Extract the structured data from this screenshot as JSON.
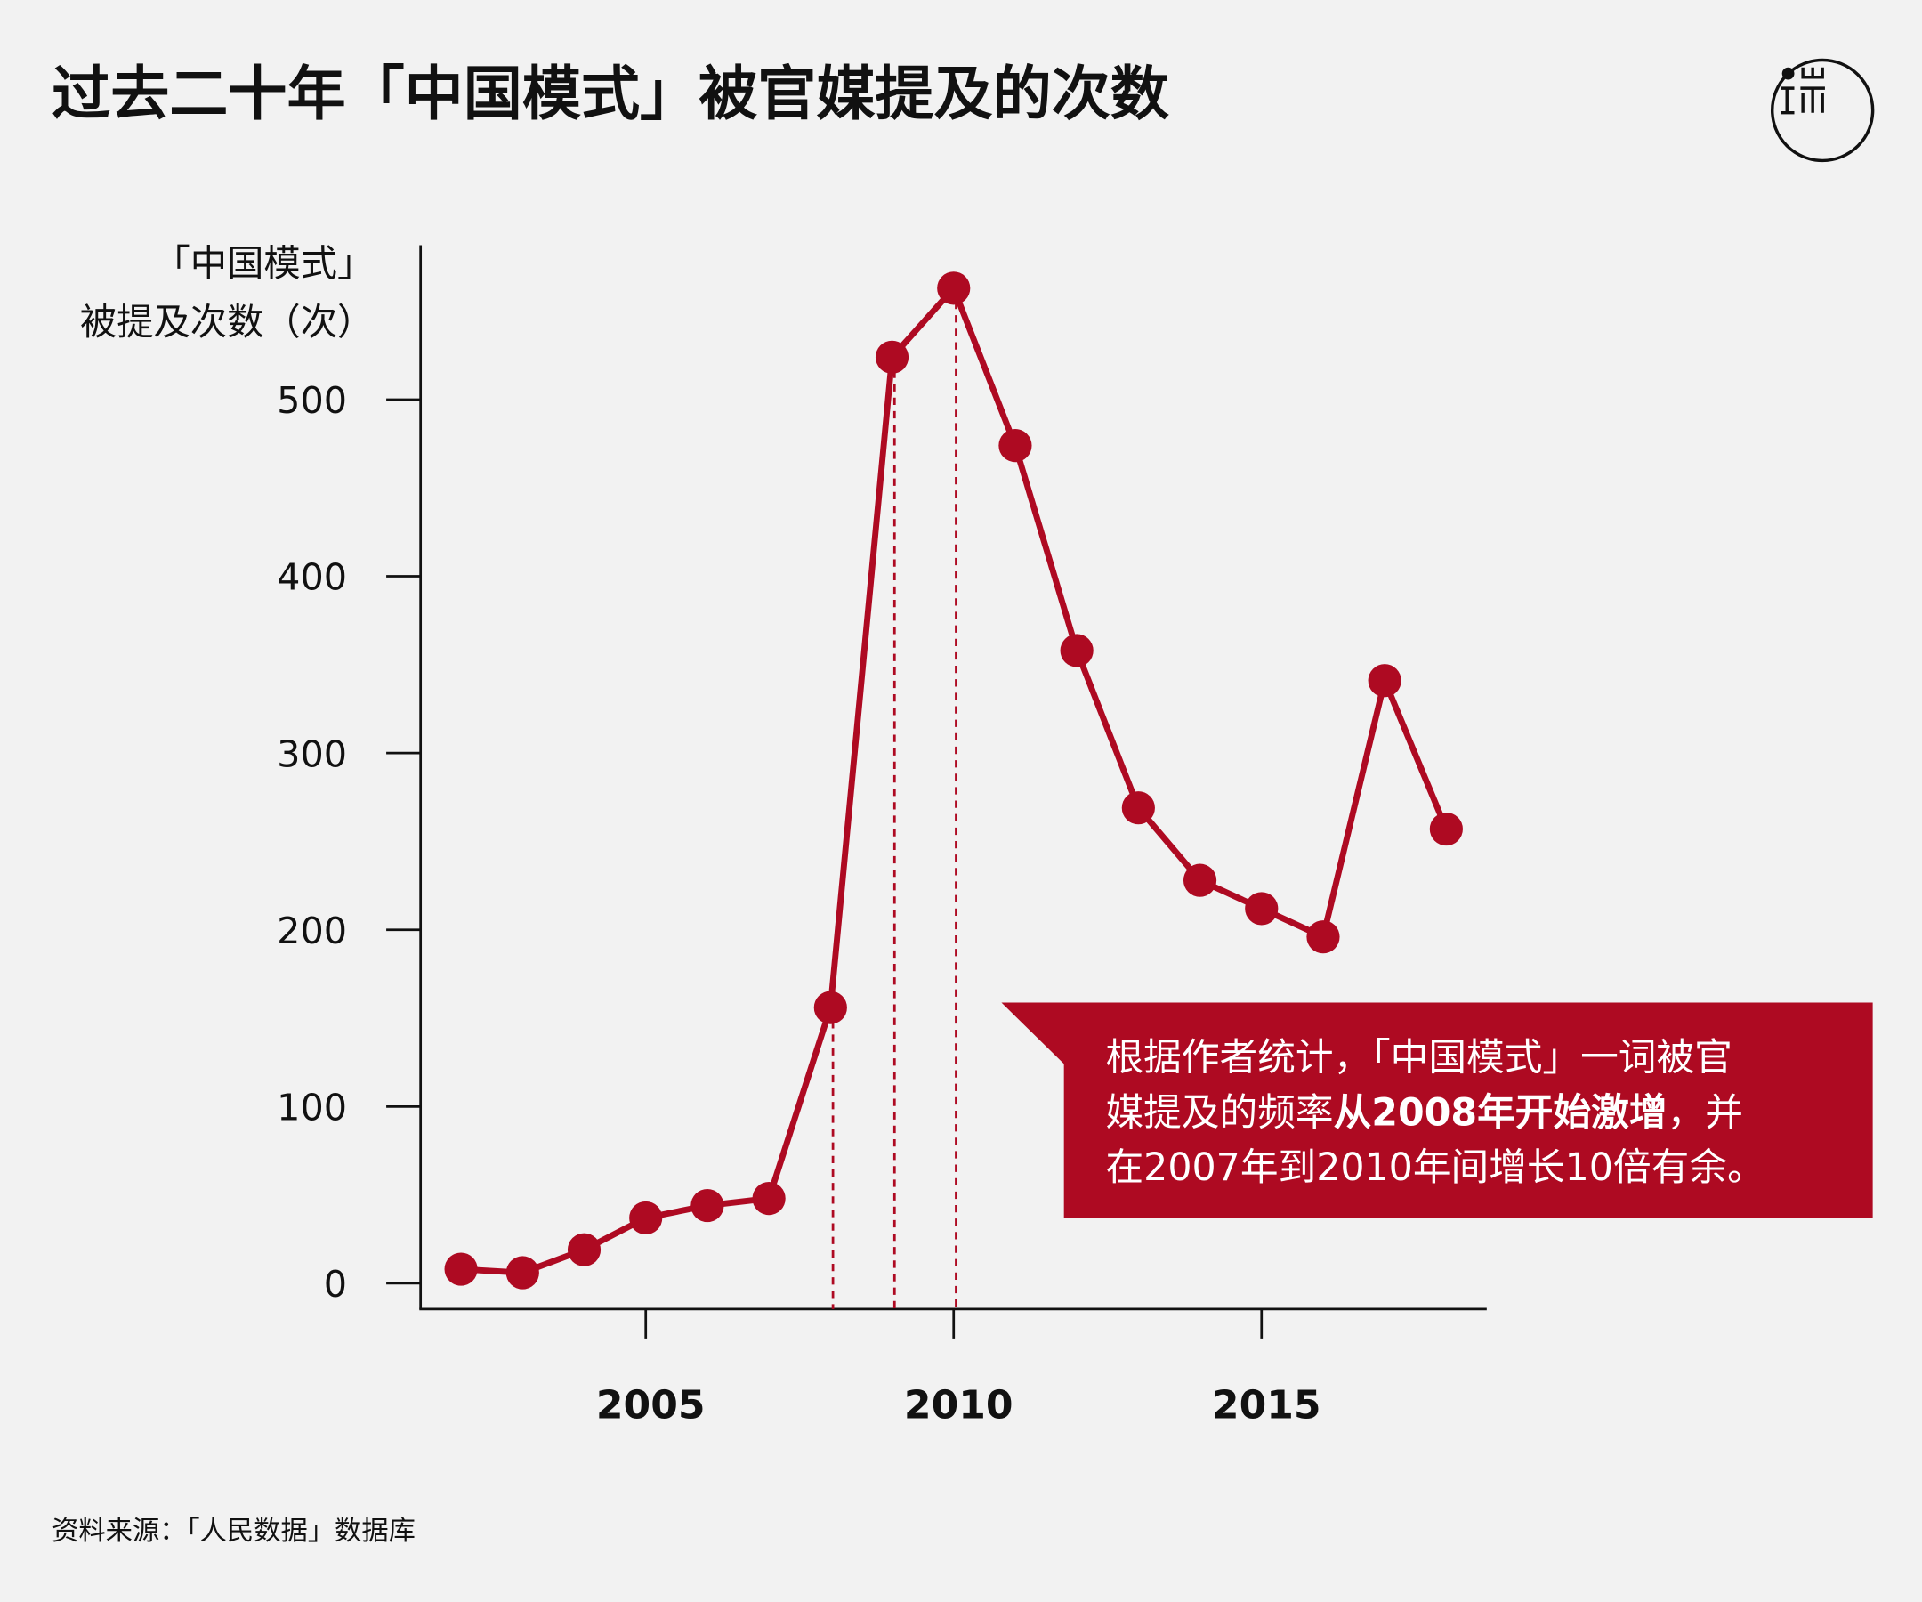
{
  "title": "过去二十年「中国模式」被官媒提及的次数",
  "logo": {
    "text": "端",
    "icon": "initium-logo"
  },
  "source": "资料来源：「人民数据」数据库",
  "annotation": {
    "line1": "根据作者统计，「中国模式」一词被官",
    "line2_pre": "媒提及的频率",
    "line2_bold": "从2008年开始激增",
    "line2_post": "，并",
    "line3": "在2007年到2010年间增长10倍有余。"
  },
  "colors": {
    "accent": "#ae0a22",
    "background": "#f2f2f2",
    "text": "#111111"
  },
  "chart_data": {
    "type": "line",
    "title": "过去二十年「中国模式」被官媒提及的次数",
    "ylabel_lines": [
      "「中国模式」",
      "被提及次数（次）"
    ],
    "xlabel": "",
    "x": [
      2002,
      2003,
      2004,
      2005,
      2006,
      2007,
      2008,
      2009,
      2010,
      2011,
      2012,
      2013,
      2014,
      2015,
      2016,
      2017,
      2018
    ],
    "values": [
      8,
      6,
      19,
      37,
      44,
      48,
      156,
      524,
      563,
      474,
      358,
      269,
      228,
      212,
      196,
      341,
      257
    ],
    "ylim": [
      0,
      600
    ],
    "yticks": [
      "0",
      "100",
      "200",
      "300",
      "400",
      "500"
    ],
    "xticks": [
      "2005",
      "2010",
      "2015"
    ],
    "highlight_years": [
      2008,
      2009,
      2010
    ],
    "grid": false,
    "legend": "none"
  }
}
